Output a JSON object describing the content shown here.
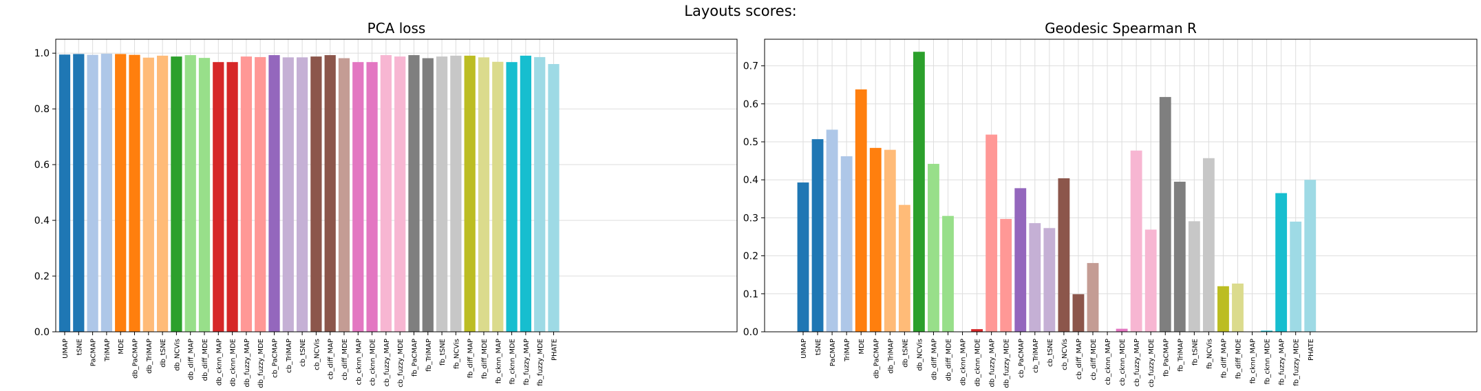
{
  "suptitle": "Layouts scores:",
  "chart_data": [
    {
      "type": "bar",
      "title": "PCA loss",
      "xlabel": "",
      "ylabel": "",
      "ylim": [
        0,
        1.05
      ],
      "yticks": [
        "0.0",
        "0.2",
        "0.4",
        "0.6",
        "0.8",
        "1.0"
      ],
      "grid": true,
      "categories": [
        "UMAP",
        "tSNE",
        "PaCMAP",
        "TriMAP",
        "MDE",
        "db_PaCMAP",
        "db_TriMAP",
        "db_tSNE",
        "db_NCVis",
        "db_diff_MAP",
        "db_diff_MDE",
        "db_cknn_MAP",
        "db_cknn_MDE",
        "db_fuzzy_MAP",
        "db_fuzzy_MDE",
        "cb_PaCMAP",
        "cb_TriMAP",
        "cb_tSNE",
        "cb_NCVis",
        "cb_diff_MAP",
        "cb_diff_MDE",
        "cb_cknn_MAP",
        "cb_cknn_MDE",
        "cb_fuzzy_MAP",
        "cb_fuzzy_MDE",
        "fb_PaCMAP",
        "fb_TriMAP",
        "fb_tSNE",
        "fb_NCVis",
        "fb_diff_MAP",
        "fb_diff_MDE",
        "fb_cknn_MAP",
        "fb_cknn_MDE",
        "fb_fuzzy_MAP",
        "fb_fuzzy_MDE",
        "PHATE"
      ],
      "values": [
        0.995,
        0.997,
        0.994,
        0.998,
        0.997,
        0.994,
        0.984,
        0.991,
        0.988,
        0.993,
        0.983,
        0.968,
        0.968,
        0.988,
        0.986,
        0.993,
        0.985,
        0.985,
        0.988,
        0.993,
        0.982,
        0.968,
        0.968,
        0.993,
        0.988,
        0.993,
        0.982,
        0.988,
        0.991,
        0.991,
        0.985,
        0.969,
        0.968,
        0.991,
        0.986,
        0.961
      ]
    },
    {
      "type": "bar",
      "title": "Geodesic Spearman R",
      "xlabel": "",
      "ylabel": "",
      "ylim": [
        0,
        0.77
      ],
      "yticks": [
        "0.0",
        "0.1",
        "0.2",
        "0.3",
        "0.4",
        "0.5",
        "0.6",
        "0.7"
      ],
      "grid": true,
      "categories": [
        "UMAP",
        "tSNE",
        "PaCMAP",
        "TriMAP",
        "MDE",
        "db_PaCMAP",
        "db_TriMAP",
        "db_tSNE",
        "db_NCVis",
        "db_diff_MAP",
        "db_diff_MDE",
        "db_cknn_MAP",
        "db_cknn_MDE",
        "db_fuzzy_MAP",
        "db_fuzzy_MDE",
        "cb_PaCMAP",
        "cb_TriMAP",
        "cb_tSNE",
        "cb_NCVis",
        "cb_diff_MAP",
        "cb_diff_MDE",
        "cb_cknn_MAP",
        "cb_cknn_MDE",
        "cb_fuzzy_MAP",
        "cb_fuzzy_MDE",
        "fb_PaCMAP",
        "fb_TriMAP",
        "fb_tSNE",
        "fb_NCVis",
        "fb_diff_MAP",
        "fb_diff_MDE",
        "fb_cknn_MAP",
        "fb_cknn_MDE",
        "fb_fuzzy_MAP",
        "fb_fuzzy_MDE",
        "PHATE"
      ],
      "values": [
        0.393,
        0.507,
        0.532,
        0.462,
        0.638,
        0.484,
        0.479,
        0.334,
        0.737,
        0.442,
        0.305,
        0.0,
        0.007,
        0.519,
        0.297,
        0.378,
        0.286,
        0.273,
        0.404,
        0.099,
        0.181,
        0.0,
        0.008,
        0.477,
        0.269,
        0.618,
        0.395,
        0.291,
        0.457,
        0.12,
        0.127,
        0.0,
        0.003,
        0.365,
        0.29,
        0.4
      ]
    }
  ],
  "colors": [
    "#1f77b4",
    "#1f77b4",
    "#aec7e8",
    "#aec7e8",
    "#ff7f0e",
    "#ff7f0e",
    "#ffbb78",
    "#ffbb78",
    "#2ca02c",
    "#98df8a",
    "#98df8a",
    "#d62728",
    "#d62728",
    "#ff9896",
    "#ff9896",
    "#9467bd",
    "#c5b0d5",
    "#c5b0d5",
    "#8c564b",
    "#8c564b",
    "#c49c94",
    "#e377c2",
    "#e377c2",
    "#f7b6d2",
    "#f7b6d2",
    "#7f7f7f",
    "#7f7f7f",
    "#c7c7c7",
    "#c7c7c7",
    "#bcbd22",
    "#dbdb8d",
    "#dbdb8d",
    "#17becf",
    "#17becf",
    "#9edae5",
    "#9edae5"
  ]
}
